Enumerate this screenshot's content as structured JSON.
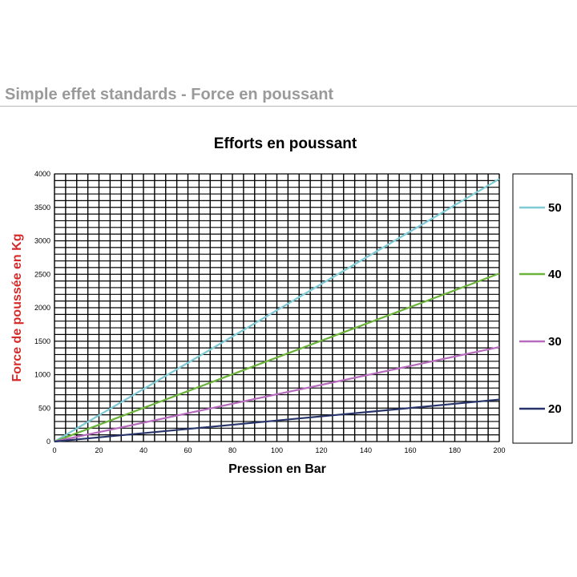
{
  "page": {
    "heading": "Simple effet standards - Force en poussant"
  },
  "colors": {
    "heading": "#9a9a9a",
    "ylabel": "#d62a2a",
    "grid": "#000000"
  },
  "chart_data": {
    "type": "line",
    "title": "Efforts en poussant",
    "xlabel": "Pression en Bar",
    "ylabel": "Force de poussée en Kg",
    "xlim": [
      0,
      200
    ],
    "ylim": [
      0,
      4000
    ],
    "x_ticks": [
      0,
      20,
      40,
      60,
      80,
      100,
      120,
      140,
      160,
      180,
      200
    ],
    "y_ticks": [
      0,
      500,
      1000,
      1500,
      2000,
      2500,
      3000,
      3500,
      4000
    ],
    "grid": true,
    "legend_position": "right",
    "series": [
      {
        "name": "50",
        "color": "#7ecbd6",
        "x": [
          0,
          200
        ],
        "values": [
          0,
          3925
        ]
      },
      {
        "name": "40",
        "color": "#6bb33a",
        "x": [
          0,
          200
        ],
        "values": [
          0,
          2512
        ]
      },
      {
        "name": "30",
        "color": "#b66bbd",
        "x": [
          0,
          200
        ],
        "values": [
          0,
          1413
        ]
      },
      {
        "name": "20",
        "color": "#27346a",
        "x": [
          0,
          200
        ],
        "values": [
          0,
          628
        ]
      }
    ]
  }
}
